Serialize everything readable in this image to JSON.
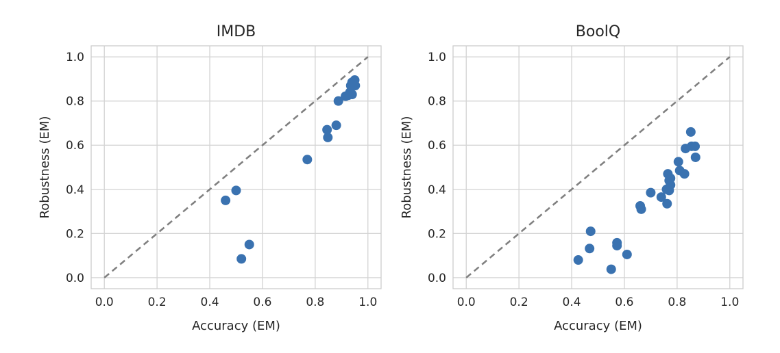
{
  "chart_data": [
    {
      "type": "scatter",
      "title": "IMDB",
      "xlabel": "Accuracy (EM)",
      "ylabel": "Robustness (EM)",
      "xlim": [
        -0.05,
        1.05
      ],
      "ylim": [
        -0.05,
        1.05
      ],
      "xticks": [
        "0.0",
        "0.2",
        "0.4",
        "0.6",
        "0.8",
        "1.0"
      ],
      "yticks": [
        "0.0",
        "0.2",
        "0.4",
        "0.6",
        "0.8",
        "1.0"
      ],
      "grid": true,
      "reference_line": {
        "from": [
          0,
          0
        ],
        "to": [
          1,
          1
        ],
        "style": "dashed",
        "color": "#808080"
      },
      "marker_color": "#3a72b0",
      "points": [
        {
          "x": 0.46,
          "y": 0.35
        },
        {
          "x": 0.5,
          "y": 0.395
        },
        {
          "x": 0.52,
          "y": 0.085
        },
        {
          "x": 0.55,
          "y": 0.15
        },
        {
          "x": 0.77,
          "y": 0.535
        },
        {
          "x": 0.845,
          "y": 0.67
        },
        {
          "x": 0.848,
          "y": 0.635
        },
        {
          "x": 0.88,
          "y": 0.69
        },
        {
          "x": 0.888,
          "y": 0.8
        },
        {
          "x": 0.915,
          "y": 0.822
        },
        {
          "x": 0.925,
          "y": 0.826
        },
        {
          "x": 0.932,
          "y": 0.84
        },
        {
          "x": 0.94,
          "y": 0.83
        },
        {
          "x": 0.935,
          "y": 0.87
        },
        {
          "x": 0.94,
          "y": 0.885
        },
        {
          "x": 0.95,
          "y": 0.895
        },
        {
          "x": 0.952,
          "y": 0.87
        }
      ]
    },
    {
      "type": "scatter",
      "title": "BoolQ",
      "xlabel": "Accuracy (EM)",
      "ylabel": "Robustness (EM)",
      "xlim": [
        -0.05,
        1.05
      ],
      "ylim": [
        -0.05,
        1.05
      ],
      "xticks": [
        "0.0",
        "0.2",
        "0.4",
        "0.6",
        "0.8",
        "1.0"
      ],
      "yticks": [
        "0.0",
        "0.2",
        "0.4",
        "0.6",
        "0.8",
        "1.0"
      ],
      "grid": true,
      "reference_line": {
        "from": [
          0,
          0
        ],
        "to": [
          1,
          1
        ],
        "style": "dashed",
        "color": "#808080"
      },
      "marker_color": "#3a72b0",
      "points": [
        {
          "x": 0.425,
          "y": 0.08
        },
        {
          "x": 0.468,
          "y": 0.132
        },
        {
          "x": 0.472,
          "y": 0.21
        },
        {
          "x": 0.55,
          "y": 0.038
        },
        {
          "x": 0.572,
          "y": 0.158
        },
        {
          "x": 0.572,
          "y": 0.145
        },
        {
          "x": 0.61,
          "y": 0.105
        },
        {
          "x": 0.66,
          "y": 0.325
        },
        {
          "x": 0.664,
          "y": 0.31
        },
        {
          "x": 0.7,
          "y": 0.385
        },
        {
          "x": 0.74,
          "y": 0.365
        },
        {
          "x": 0.76,
          "y": 0.4
        },
        {
          "x": 0.762,
          "y": 0.335
        },
        {
          "x": 0.765,
          "y": 0.47
        },
        {
          "x": 0.77,
          "y": 0.44
        },
        {
          "x": 0.775,
          "y": 0.45
        },
        {
          "x": 0.77,
          "y": 0.395
        },
        {
          "x": 0.775,
          "y": 0.42
        },
        {
          "x": 0.805,
          "y": 0.525
        },
        {
          "x": 0.81,
          "y": 0.485
        },
        {
          "x": 0.828,
          "y": 0.47
        },
        {
          "x": 0.832,
          "y": 0.585
        },
        {
          "x": 0.852,
          "y": 0.66
        },
        {
          "x": 0.855,
          "y": 0.595
        },
        {
          "x": 0.868,
          "y": 0.595
        },
        {
          "x": 0.87,
          "y": 0.545
        }
      ]
    }
  ]
}
